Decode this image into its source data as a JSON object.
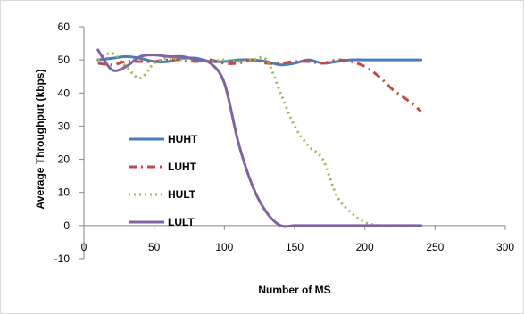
{
  "chart_data": {
    "type": "line",
    "title": "",
    "xlabel": "Number of MS",
    "ylabel": "Average Throughput (kbps)",
    "xlim": [
      0,
      300
    ],
    "ylim": [
      -10,
      60
    ],
    "x_ticks": [
      0,
      50,
      100,
      150,
      200,
      250,
      300
    ],
    "y_ticks": [
      -10,
      0,
      10,
      20,
      30,
      40,
      50,
      60
    ],
    "grid": false,
    "legend_position": "left",
    "series": [
      {
        "name": "HUHT",
        "color": "#4a7ebb",
        "dash": "solid",
        "x": [
          10,
          20,
          30,
          40,
          50,
          60,
          70,
          80,
          90,
          100,
          110,
          120,
          130,
          140,
          150,
          160,
          170,
          180,
          190,
          200,
          210,
          220,
          230,
          240
        ],
        "y": [
          50,
          50.5,
          51,
          50.5,
          49.5,
          49.5,
          50.5,
          50.5,
          49.5,
          49.5,
          50,
          50,
          49.5,
          48.5,
          49,
          50,
          49,
          49.5,
          50,
          50,
          50,
          50,
          50,
          50
        ]
      },
      {
        "name": "LUHT",
        "color": "#be4b48",
        "dash": "dashdot",
        "x": [
          10,
          20,
          30,
          40,
          50,
          60,
          70,
          80,
          90,
          100,
          110,
          120,
          130,
          140,
          150,
          160,
          170,
          180,
          190,
          200,
          210,
          220,
          230,
          240
        ],
        "y": [
          49,
          48.5,
          49.5,
          49.5,
          49.5,
          50,
          50,
          49.5,
          50,
          49,
          49,
          50,
          49,
          49,
          49.5,
          49.5,
          49,
          50,
          49.5,
          48,
          45,
          41,
          38,
          34.5
        ]
      },
      {
        "name": "HULT",
        "color": "#98b954",
        "dash": "dotted",
        "x": [
          10,
          20,
          30,
          40,
          50,
          60,
          70,
          80,
          90,
          100,
          110,
          120,
          130,
          140,
          150,
          160,
          170,
          180,
          190,
          200,
          210,
          220,
          230,
          240
        ],
        "y": [
          50,
          52,
          48,
          44.5,
          49,
          50.5,
          50,
          50,
          49.5,
          50,
          49.5,
          50,
          50,
          40,
          30,
          24,
          20,
          9,
          4,
          1,
          0,
          0,
          0,
          0
        ]
      },
      {
        "name": "LULT",
        "color": "#8064a2",
        "dash": "solid",
        "x": [
          10,
          20,
          30,
          40,
          50,
          60,
          70,
          80,
          90,
          100,
          110,
          120,
          130,
          140,
          150,
          160,
          170,
          180,
          190,
          200,
          210,
          220,
          230,
          240
        ],
        "y": [
          53,
          47,
          48,
          51,
          51.5,
          51,
          51,
          50,
          49,
          43,
          25,
          12,
          4,
          0,
          0,
          0,
          0,
          0,
          0,
          0,
          0,
          0,
          0,
          0
        ]
      }
    ]
  }
}
